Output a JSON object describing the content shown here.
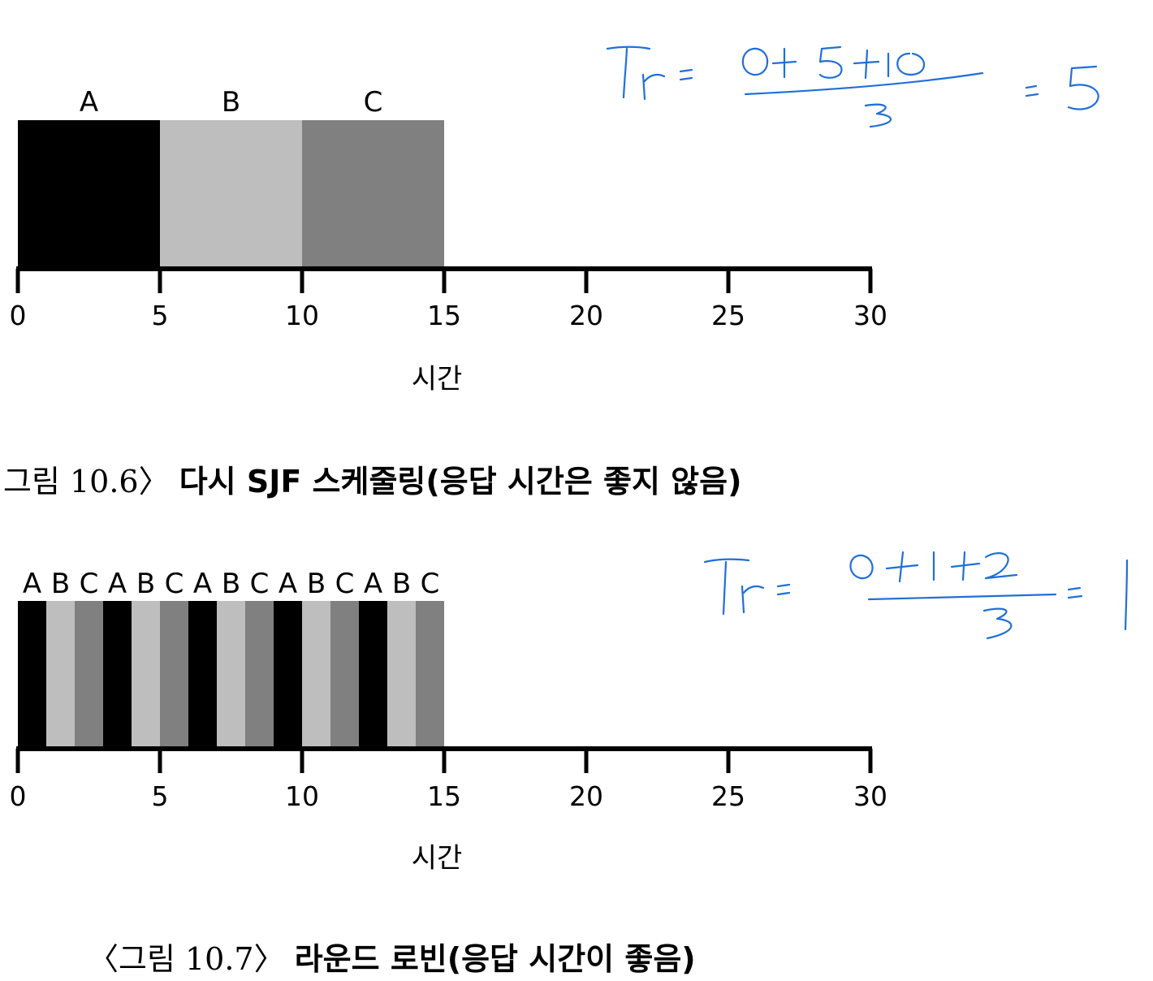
{
  "chart_data": [
    {
      "type": "bar",
      "subtype": "gantt",
      "xlabel": "시간",
      "xlim": [
        0,
        30
      ],
      "xticks": [
        0,
        5,
        10,
        15,
        20,
        25,
        30
      ],
      "segments": [
        {
          "label": "A",
          "start": 0,
          "end": 5,
          "color": "#000000"
        },
        {
          "label": "B",
          "start": 5,
          "end": 10,
          "color": "#bebebe"
        },
        {
          "label": "C",
          "start": 10,
          "end": 15,
          "color": "#808080"
        }
      ],
      "caption_prefix": "그림 10.6〉",
      "caption_bold": "다시 SJF 스케줄링",
      "caption_paren": "(응답 시간은 좋지 않음)",
      "annotation": "Tr = (0+5+10)/3 = 5"
    },
    {
      "type": "bar",
      "subtype": "gantt",
      "xlabel": "시간",
      "xlim": [
        0,
        30
      ],
      "xticks": [
        0,
        5,
        10,
        15,
        20,
        25,
        30
      ],
      "segments": [
        {
          "label": "A",
          "start": 0,
          "end": 1,
          "color": "#000000"
        },
        {
          "label": "B",
          "start": 1,
          "end": 2,
          "color": "#bebebe"
        },
        {
          "label": "C",
          "start": 2,
          "end": 3,
          "color": "#808080"
        },
        {
          "label": "A",
          "start": 3,
          "end": 4,
          "color": "#000000"
        },
        {
          "label": "B",
          "start": 4,
          "end": 5,
          "color": "#bebebe"
        },
        {
          "label": "C",
          "start": 5,
          "end": 6,
          "color": "#808080"
        },
        {
          "label": "A",
          "start": 6,
          "end": 7,
          "color": "#000000"
        },
        {
          "label": "B",
          "start": 7,
          "end": 8,
          "color": "#bebebe"
        },
        {
          "label": "C",
          "start": 8,
          "end": 9,
          "color": "#808080"
        },
        {
          "label": "A",
          "start": 9,
          "end": 10,
          "color": "#000000"
        },
        {
          "label": "B",
          "start": 10,
          "end": 11,
          "color": "#bebebe"
        },
        {
          "label": "C",
          "start": 11,
          "end": 12,
          "color": "#808080"
        },
        {
          "label": "A",
          "start": 12,
          "end": 13,
          "color": "#000000"
        },
        {
          "label": "B",
          "start": 13,
          "end": 14,
          "color": "#bebebe"
        },
        {
          "label": "C",
          "start": 14,
          "end": 15,
          "color": "#808080"
        }
      ],
      "caption_prefix": "〈그림 10.7〉",
      "caption_bold": "라운드 로빈",
      "caption_paren": "(응답 시간이 좋음)",
      "annotation": "Tr = (0+1+2)/3 = 1"
    }
  ]
}
